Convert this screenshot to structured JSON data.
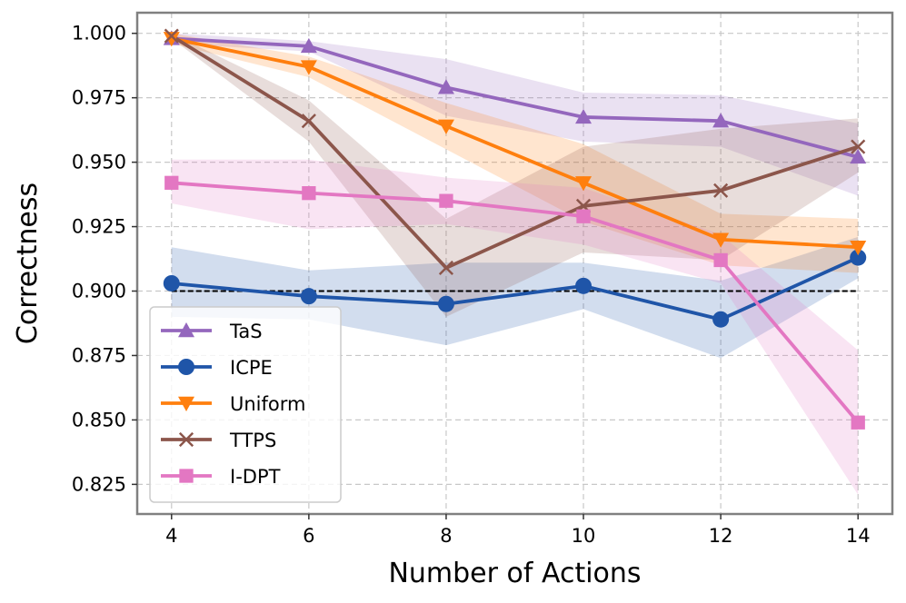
{
  "chart_data": {
    "type": "line",
    "title": "",
    "xlabel": "Number of Actions",
    "ylabel": "Correctness",
    "x": [
      4,
      6,
      8,
      10,
      12,
      14
    ],
    "xlim": [
      3.5,
      14.5
    ],
    "ylim": [
      0.8135,
      1.008
    ],
    "xticks": [
      "4",
      "6",
      "8",
      "10",
      "12",
      "14"
    ],
    "yticks": [
      "0.825",
      "0.850",
      "0.875",
      "0.900",
      "0.925",
      "0.950",
      "0.975",
      "1.000"
    ],
    "grid": true,
    "legend_position": "lower-left",
    "reference_line": {
      "y": 0.9,
      "style": "dashed",
      "color": "#000000"
    },
    "series": [
      {
        "name": "TaS",
        "color": "#9467bd",
        "marker": "triangle-up",
        "values": [
          0.998,
          0.995,
          0.979,
          0.9675,
          0.966,
          0.952
        ],
        "band_lower": [
          0.996,
          0.993,
          0.968,
          0.958,
          0.956,
          0.937
        ],
        "band_upper": [
          1.0,
          0.997,
          0.99,
          0.977,
          0.976,
          0.965
        ]
      },
      {
        "name": "ICPE",
        "color": "#1f55a8",
        "marker": "circle",
        "values": [
          0.903,
          0.898,
          0.895,
          0.902,
          0.889,
          0.913
        ],
        "band_lower": [
          0.89,
          0.889,
          0.879,
          0.893,
          0.874,
          0.905
        ],
        "band_upper": [
          0.917,
          0.908,
          0.911,
          0.911,
          0.904,
          0.921
        ]
      },
      {
        "name": "Uniform",
        "color": "#ff7f0e",
        "marker": "triangle-down",
        "values": [
          0.998,
          0.987,
          0.964,
          0.942,
          0.92,
          0.917
        ],
        "band_lower": [
          0.996,
          0.983,
          0.955,
          0.927,
          0.91,
          0.907
        ],
        "band_upper": [
          1.0,
          0.991,
          0.973,
          0.957,
          0.93,
          0.928
        ]
      },
      {
        "name": "TTPS",
        "color": "#8c564b",
        "marker": "x",
        "values": [
          0.999,
          0.966,
          0.909,
          0.933,
          0.939,
          0.956
        ],
        "band_lower": [
          0.998,
          0.958,
          0.89,
          0.915,
          0.912,
          0.946
        ],
        "band_upper": [
          1.0,
          0.974,
          0.928,
          0.956,
          0.963,
          0.967
        ]
      },
      {
        "name": "I-DPT",
        "color": "#e377c2",
        "marker": "square",
        "values": [
          0.942,
          0.938,
          0.935,
          0.929,
          0.912,
          0.849
        ],
        "band_lower": [
          0.934,
          0.924,
          0.926,
          0.918,
          0.903,
          0.821
        ],
        "band_upper": [
          0.951,
          0.951,
          0.944,
          0.94,
          0.922,
          0.877
        ]
      }
    ]
  }
}
